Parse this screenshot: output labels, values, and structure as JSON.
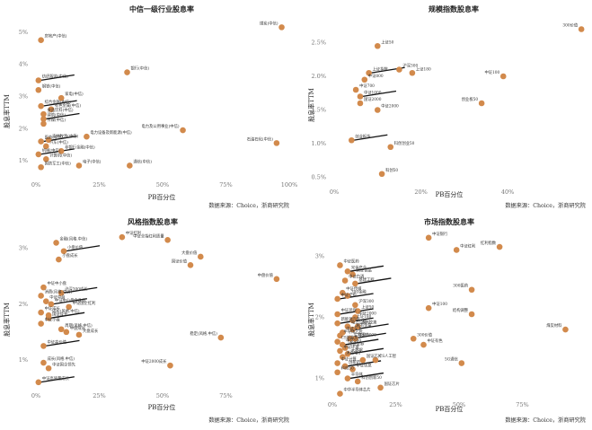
{
  "chart_data": [
    {
      "type": "scatter",
      "title": "中信一级行业股息率",
      "xlabel": "PB百分位",
      "ylabel": "股息率TTM",
      "xticks": [
        "0%",
        "25%",
        "50%",
        "75%",
        "100%"
      ],
      "yticks": [
        "1%",
        "2%",
        "3%",
        "4%",
        "5%"
      ],
      "source": "数据来源：Choice，浙商研究院",
      "points": [
        {
          "name": "煤炭(中信)",
          "x": 0.97,
          "y": 5.15
        },
        {
          "name": "房地产(中信)",
          "x": 0.02,
          "y": 4.75
        },
        {
          "name": "银行(中信)",
          "x": 0.36,
          "y": 3.75
        },
        {
          "name": "纺织服装(中信)",
          "x": 0.01,
          "y": 3.5
        },
        {
          "name": "钢铁(中信)",
          "x": 0.01,
          "y": 3.2
        },
        {
          "name": "家电(中信)",
          "x": 0.1,
          "y": 2.95
        },
        {
          "name": "综合金融(中信)",
          "x": 0.02,
          "y": 2.7
        },
        {
          "name": "有色金属(中信)",
          "x": 0.06,
          "y": 2.6
        },
        {
          "name": "食品饮料(中信)",
          "x": 0.03,
          "y": 2.45
        },
        {
          "name": "建筑(中信)",
          "x": 0.03,
          "y": 2.3
        },
        {
          "name": "传媒(中信)",
          "x": 0.03,
          "y": 2.15
        },
        {
          "name": "电力及公用事业(中信)",
          "x": 0.58,
          "y": 1.95
        },
        {
          "name": "电力设备及新能源(中信)",
          "x": 0.2,
          "y": 1.75
        },
        {
          "name": "农林牧渔(中信)",
          "x": 0.05,
          "y": 1.65
        },
        {
          "name": "石油石化(中信)",
          "x": 0.95,
          "y": 1.55
        },
        {
          "name": "医药(中信)",
          "x": 0.02,
          "y": 1.6
        },
        {
          "name": "汽车(中信)",
          "x": 0.04,
          "y": 1.45
        },
        {
          "name": "非银行金融(中信)",
          "x": 0.1,
          "y": 1.3
        },
        {
          "name": "机械(中信)",
          "x": 0.01,
          "y": 1.2
        },
        {
          "name": "计算机(中信)",
          "x": 0.04,
          "y": 1.05
        },
        {
          "name": "通信(中信)",
          "x": 0.37,
          "y": 0.85
        },
        {
          "name": "电子(中信)",
          "x": 0.17,
          "y": 0.85
        },
        {
          "name": "国防军工(中信)",
          "x": 0.02,
          "y": 0.8
        }
      ]
    },
    {
      "type": "scatter",
      "title": "规模指数股息率",
      "xlabel": "PB百分位",
      "ylabel": "股息率TTM",
      "xticks": [
        "0%",
        "20%",
        "40%"
      ],
      "yticks": [
        "0.5%",
        "1.0%",
        "1.5%",
        "2.0%",
        "2.5%"
      ],
      "source": "数据来源：Choice，浙商研究院",
      "points": [
        {
          "name": "300价值",
          "x": 0.57,
          "y": 2.7
        },
        {
          "name": "上证50",
          "x": 0.1,
          "y": 2.45
        },
        {
          "name": "沪深300",
          "x": 0.15,
          "y": 2.1
        },
        {
          "name": "上证180",
          "x": 0.18,
          "y": 2.05
        },
        {
          "name": "上证指数",
          "x": 0.08,
          "y": 2.05
        },
        {
          "name": "中证100",
          "x": 0.39,
          "y": 2.0
        },
        {
          "name": "中证800",
          "x": 0.07,
          "y": 1.95
        },
        {
          "name": "中证700",
          "x": 0.05,
          "y": 1.8
        },
        {
          "name": "中证1000",
          "x": 0.06,
          "y": 1.7
        },
        {
          "name": "创业板50",
          "x": 0.34,
          "y": 1.6
        },
        {
          "name": "国证2000",
          "x": 0.06,
          "y": 1.6
        },
        {
          "name": "中证2000",
          "x": 0.1,
          "y": 1.5
        },
        {
          "name": "创业板指",
          "x": 0.04,
          "y": 1.05
        },
        {
          "name": "科创创业50",
          "x": 0.13,
          "y": 0.95
        },
        {
          "name": "科创50",
          "x": 0.11,
          "y": 0.55
        }
      ]
    },
    {
      "type": "scatter",
      "title": "风格指数股息率",
      "xlabel": "PB百分位",
      "ylabel": "股息率TTM",
      "xticks": [
        "0%",
        "25%",
        "50%",
        "75%"
      ],
      "yticks": [
        "1%",
        "2%",
        "3%"
      ],
      "source": "数据来源：Choice，浙商研究院",
      "points": [
        {
          "name": "中证红利",
          "x": 0.34,
          "y": 3.2
        },
        {
          "name": "中证全指红利质量",
          "x": 0.52,
          "y": 3.15
        },
        {
          "name": "金融(风格.中信)",
          "x": 0.08,
          "y": 3.1
        },
        {
          "name": "小盘价值",
          "x": 0.11,
          "y": 2.95
        },
        {
          "name": "小盘成长",
          "x": 0.09,
          "y": 2.8
        },
        {
          "name": "大盘价值",
          "x": 0.65,
          "y": 2.85
        },
        {
          "name": "国证价值",
          "x": 0.61,
          "y": 2.7
        },
        {
          "name": "中盘价值",
          "x": 0.95,
          "y": 2.45
        },
        {
          "name": "中证中小盘",
          "x": 0.03,
          "y": 2.3
        },
        {
          "name": "沪深300成长",
          "x": 0.1,
          "y": 2.2
        },
        {
          "name": "消费(风格.中信)",
          "x": 0.02,
          "y": 2.15
        },
        {
          "name": "中证中盘",
          "x": 0.04,
          "y": 2.05
        },
        {
          "name": "中证中小盘全收益",
          "x": 0.06,
          "y": 2.0
        },
        {
          "name": "中证国企红利",
          "x": 0.13,
          "y": 1.95
        },
        {
          "name": "中证成长",
          "x": 0.02,
          "y": 1.85
        },
        {
          "name": "成长(风格.中信)",
          "x": 0.05,
          "y": 1.8
        },
        {
          "name": "国证成长",
          "x": 0.05,
          "y": 1.75
        },
        {
          "name": "中证小盘",
          "x": 0.02,
          "y": 1.65
        },
        {
          "name": "周期(风格.中信)",
          "x": 0.1,
          "y": 1.55
        },
        {
          "name": "中盘成长",
          "x": 0.12,
          "y": 1.5
        },
        {
          "name": "大盘成长",
          "x": 0.17,
          "y": 1.45
        },
        {
          "name": "稳定(风格.中信)",
          "x": 0.73,
          "y": 1.4
        },
        {
          "name": "中证高价值",
          "x": 0.03,
          "y": 1.25
        },
        {
          "name": "成长(风格.中信)",
          "x": 0.03,
          "y": 0.95
        },
        {
          "name": "中证国企领先",
          "x": 0.05,
          "y": 0.85
        },
        {
          "name": "中证高质量成长",
          "x": 0.01,
          "y": 0.6
        },
        {
          "name": "中证2000成长",
          "x": 0.53,
          "y": 0.9
        }
      ]
    },
    {
      "type": "scatter",
      "title": "市场指数股息率",
      "xlabel": "PB百分位",
      "ylabel": "股息率TTM",
      "xticks": [
        "0%",
        "25%",
        "50%",
        "75%"
      ],
      "yticks": [
        "1%",
        "2%",
        "3%"
      ],
      "source": "数据来源：Choice，浙商研究院",
      "points": [
        {
          "name": "中证银行",
          "x": 0.38,
          "y": 3.3
        },
        {
          "name": "红利指数",
          "x": 0.66,
          "y": 3.15
        },
        {
          "name": "中证红利",
          "x": 0.49,
          "y": 3.1
        },
        {
          "name": "中证医药",
          "x": 0.03,
          "y": 2.85
        },
        {
          "name": "光伏产业",
          "x": 0.06,
          "y": 2.75
        },
        {
          "name": "国证食品",
          "x": 0.08,
          "y": 2.7
        },
        {
          "name": "中证白酒",
          "x": 0.05,
          "y": 2.6
        },
        {
          "name": "基建工程",
          "x": 0.09,
          "y": 2.55
        },
        {
          "name": "300医药",
          "x": 0.55,
          "y": 2.45
        },
        {
          "name": "中证传媒",
          "x": 0.04,
          "y": 2.4
        },
        {
          "name": "300金融",
          "x": 0.06,
          "y": 2.35
        },
        {
          "name": "中证全指",
          "x": 0.02,
          "y": 2.3
        },
        {
          "name": "中证100",
          "x": 0.38,
          "y": 2.15
        },
        {
          "name": "结构调整",
          "x": 0.55,
          "y": 2.05
        },
        {
          "name": "沪深300",
          "x": 0.09,
          "y": 2.2
        },
        {
          "name": "上证50",
          "x": 0.1,
          "y": 2.1
        },
        {
          "name": "中证环保",
          "x": 0.02,
          "y": 2.05
        },
        {
          "name": "中证2000",
          "x": 0.09,
          "y": 2.0
        },
        {
          "name": "煤炭材料",
          "x": 0.92,
          "y": 1.8
        },
        {
          "name": "上证180",
          "x": 0.08,
          "y": 1.95
        },
        {
          "name": "新能源汽车",
          "x": 0.02,
          "y": 1.9
        },
        {
          "name": "电力公用",
          "x": 0.06,
          "y": 1.85
        },
        {
          "name": "农林牧渔",
          "x": 0.1,
          "y": 1.85
        },
        {
          "name": "稀有金属",
          "x": 0.08,
          "y": 1.8
        },
        {
          "name": "中证军工",
          "x": 0.04,
          "y": 1.75
        },
        {
          "name": "半导体芯片",
          "x": 0.03,
          "y": 1.7
        },
        {
          "name": "生物医药",
          "x": 0.07,
          "y": 1.65
        },
        {
          "name": "中证1000",
          "x": 0.09,
          "y": 1.65
        },
        {
          "name": "CS新能车",
          "x": 0.02,
          "y": 1.6
        },
        {
          "name": "中证500",
          "x": 0.04,
          "y": 1.55
        },
        {
          "name": "中证证券",
          "x": 0.05,
          "y": 1.5
        },
        {
          "name": "300价值",
          "x": 0.32,
          "y": 1.65
        },
        {
          "name": "中证有色",
          "x": 0.36,
          "y": 1.55
        },
        {
          "name": "中证环境",
          "x": 0.03,
          "y": 1.45
        },
        {
          "name": "大数据",
          "x": 0.06,
          "y": 1.4
        },
        {
          "name": "消费电子",
          "x": 0.04,
          "y": 1.35
        },
        {
          "name": "国证芯片",
          "x": 0.12,
          "y": 1.3
        },
        {
          "name": "CS人工智",
          "x": 0.17,
          "y": 1.3
        },
        {
          "name": "5G通信",
          "x": 0.51,
          "y": 1.25
        },
        {
          "name": "中证计算",
          "x": 0.02,
          "y": 1.25
        },
        {
          "name": "创新药",
          "x": 0.05,
          "y": 1.2
        },
        {
          "name": "中证信息",
          "x": 0.08,
          "y": 1.15
        },
        {
          "name": "科创50",
          "x": 0.02,
          "y": 1.1
        },
        {
          "name": "半导体",
          "x": 0.06,
          "y": 1.0
        },
        {
          "name": "科创创新50",
          "x": 0.1,
          "y": 0.95
        },
        {
          "name": "国证芯片",
          "x": 0.19,
          "y": 0.85
        },
        {
          "name": "中华半导体芯片",
          "x": 0.03,
          "y": 0.75
        }
      ]
    }
  ]
}
